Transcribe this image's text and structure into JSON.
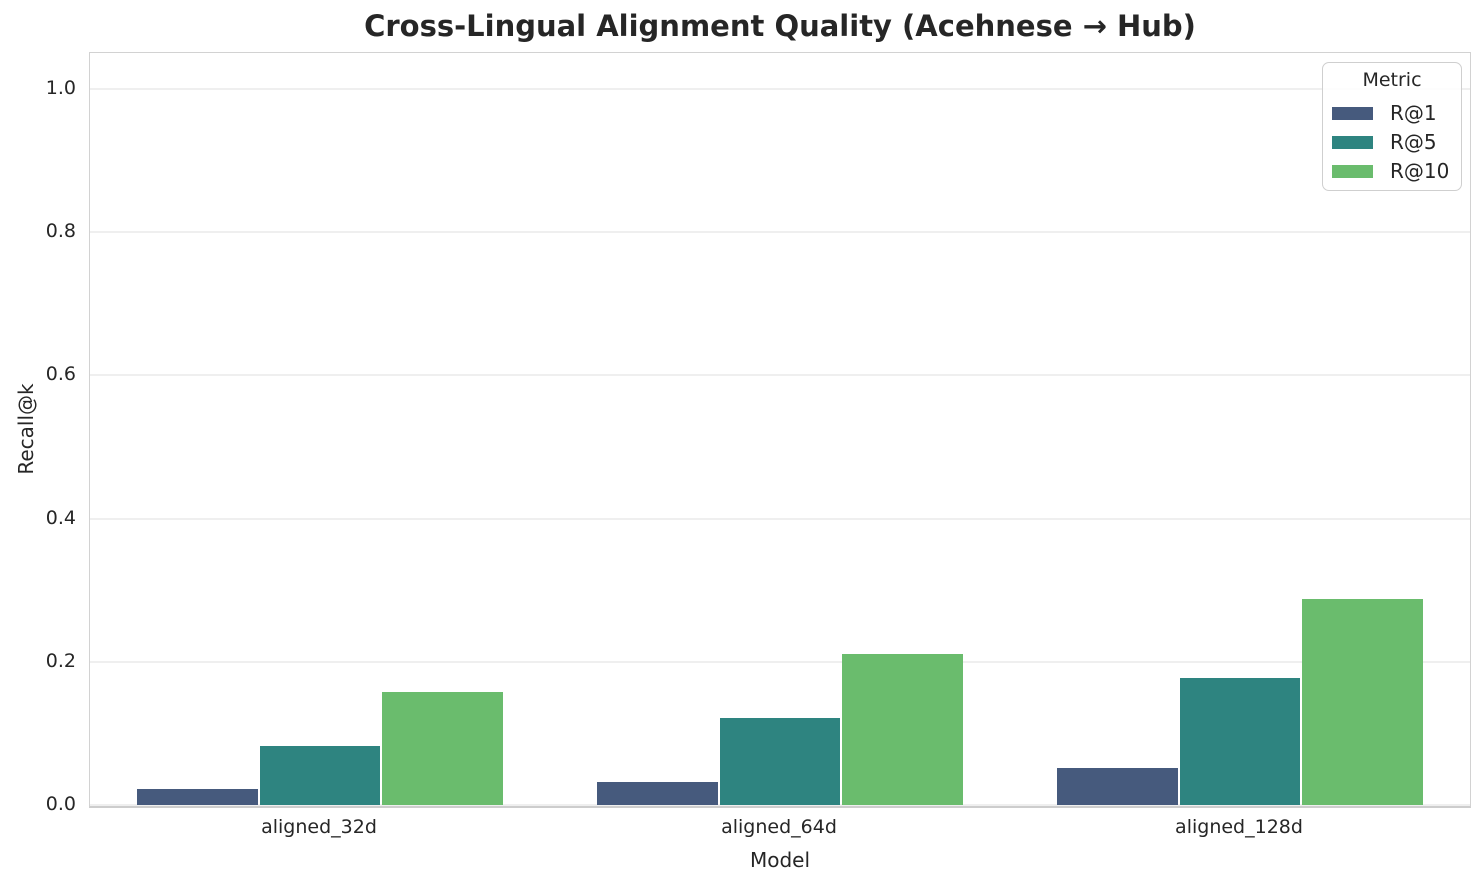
{
  "chart_data": {
    "type": "bar",
    "title": "Cross-Lingual Alignment Quality (Acehnese → Hub)",
    "xlabel": "Model",
    "ylabel": "Recall@k",
    "categories": [
      "aligned_32d",
      "aligned_64d",
      "aligned_128d"
    ],
    "series": [
      {
        "name": "R@1",
        "color": "#465a7d",
        "values": [
          0.023,
          0.032,
          0.052
        ]
      },
      {
        "name": "R@5",
        "color": "#2e8480",
        "values": [
          0.083,
          0.122,
          0.178
        ]
      },
      {
        "name": "R@10",
        "color": "#6abc6d",
        "values": [
          0.158,
          0.211,
          0.288
        ]
      }
    ],
    "ylim": [
      0,
      1.05
    ],
    "yticks": [
      {
        "value": 0.0,
        "label": "0.0"
      },
      {
        "value": 0.2,
        "label": "0.2"
      },
      {
        "value": 0.4,
        "label": "0.4"
      },
      {
        "value": 0.6,
        "label": "0.6"
      },
      {
        "value": 0.8,
        "label": "0.8"
      },
      {
        "value": 1.0,
        "label": "1.0"
      }
    ],
    "grid": true,
    "legend": {
      "title": "Metric",
      "position": "upper right"
    },
    "bar_group_width": 0.8
  },
  "colors": {
    "background": "#ffffff",
    "text": "#262626",
    "gridline": "#efefef",
    "spine": "#d2d2d2"
  }
}
